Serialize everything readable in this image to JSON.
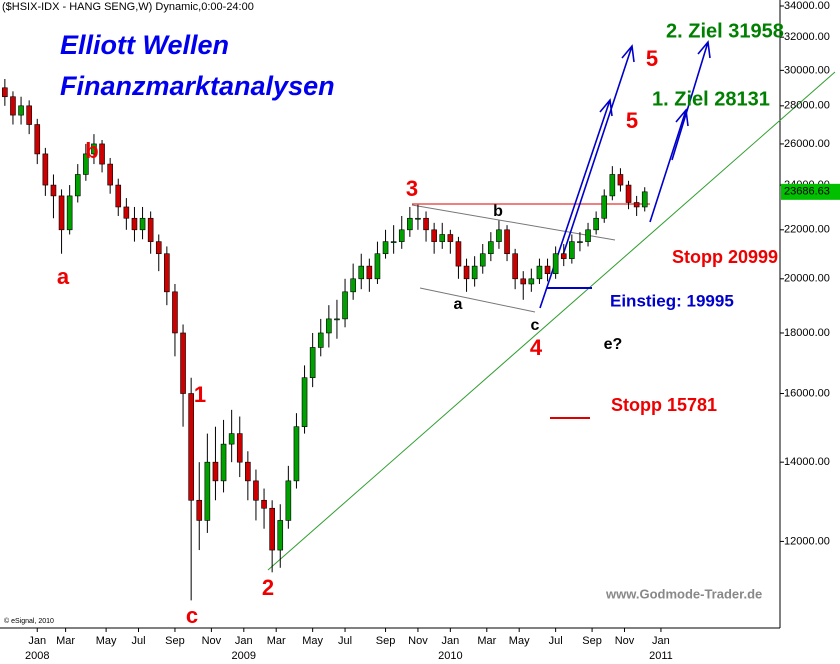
{
  "header": "($HSIX-IDX - HANG SENG,W) Dynamic,0:00-24:00",
  "chart_data": {
    "type": "candlestick",
    "title": "Elliott Wellen",
    "subtitle": "Finanzmarktanalysen",
    "log_scale": true,
    "up_color": "#00a000",
    "down_color": "#cc0000",
    "x": [
      0,
      2,
      4,
      6,
      8,
      10,
      12,
      14,
      16,
      18,
      20,
      22,
      24,
      26,
      28,
      30,
      32,
      34,
      36,
      38,
      40,
      42,
      44,
      46,
      48,
      50,
      52,
      54,
      56,
      58,
      60,
      62,
      64,
      66,
      68,
      70,
      72,
      74,
      76,
      78,
      80,
      82,
      84,
      86,
      88,
      90,
      92,
      94,
      96,
      98,
      100,
      102,
      104,
      106,
      108,
      110,
      112,
      114,
      116,
      118,
      120,
      122,
      124,
      126,
      128,
      130,
      132,
      134,
      136,
      138,
      140,
      142,
      144,
      146,
      148,
      150,
      152,
      154,
      156,
      158
    ],
    "open": [
      29000,
      28500,
      27500,
      28000,
      27000,
      25500,
      24000,
      23500,
      22000,
      23500,
      24500,
      25500,
      26000,
      25000,
      24000,
      23000,
      22500,
      22000,
      22500,
      21500,
      21000,
      19500,
      18000,
      16000,
      13000,
      12500,
      14000,
      13500,
      14500,
      14800,
      14000,
      13500,
      13000,
      12800,
      11800,
      12500,
      13500,
      15000,
      16500,
      17500,
      18000,
      18500,
      18500,
      19500,
      20000,
      20500,
      20000,
      21000,
      21500,
      21500,
      22000,
      22500,
      22500,
      22000,
      21500,
      21800,
      21500,
      20500,
      20000,
      20500,
      21000,
      21500,
      22000,
      21000,
      20000,
      19800,
      20000,
      20500,
      20200,
      21000,
      20800,
      21500,
      21500,
      22000,
      22500,
      23500,
      24500,
      24000,
      23200,
      23000
    ],
    "high": [
      29500,
      28800,
      28500,
      28300,
      27300,
      25800,
      24500,
      23800,
      24000,
      25000,
      26000,
      26500,
      26200,
      25300,
      24300,
      23400,
      23000,
      23000,
      22800,
      21800,
      21300,
      19800,
      18300,
      16500,
      14000,
      14800,
      15000,
      15200,
      15500,
      15300,
      14300,
      13800,
      13300,
      13000,
      12900,
      13900,
      15400,
      16900,
      18000,
      18500,
      19000,
      19200,
      20000,
      20600,
      21000,
      20800,
      21500,
      22000,
      22200,
      22600,
      23000,
      23100,
      22800,
      22300,
      22300,
      22000,
      21700,
      20800,
      20900,
      21400,
      21900,
      22400,
      22200,
      21200,
      20300,
      20400,
      20800,
      20800,
      21300,
      21400,
      21800,
      21900,
      22300,
      22800,
      23800,
      24900,
      24800,
      24200,
      23500,
      23900
    ],
    "low": [
      28000,
      27000,
      27000,
      26500,
      25000,
      23500,
      22500,
      21000,
      21800,
      23200,
      24200,
      25000,
      24600,
      23600,
      22600,
      22000,
      21500,
      21600,
      21000,
      20300,
      19000,
      17200,
      15000,
      10700,
      11800,
      12200,
      13000,
      13200,
      14000,
      13600,
      13000,
      12500,
      12300,
      11300,
      11400,
      12300,
      13300,
      14800,
      16200,
      17200,
      17500,
      17800,
      18200,
      19200,
      19600,
      19500,
      19800,
      20800,
      21000,
      21200,
      21700,
      22000,
      21500,
      21000,
      21200,
      21000,
      20000,
      19500,
      19700,
      20200,
      20700,
      21200,
      20700,
      19600,
      19200,
      19500,
      19800,
      19900,
      20000,
      20500,
      20600,
      21100,
      21300,
      21800,
      22300,
      23300,
      23700,
      22900,
      22600,
      22800
    ],
    "close": [
      28500,
      27500,
      28000,
      27000,
      25500,
      24000,
      23500,
      22000,
      23500,
      24500,
      25500,
      26000,
      25000,
      24000,
      23000,
      22500,
      22000,
      22500,
      21500,
      21000,
      19500,
      18000,
      16000,
      13000,
      12500,
      14000,
      13500,
      14500,
      14800,
      14000,
      13500,
      13000,
      12800,
      11800,
      12500,
      13500,
      15000,
      16500,
      17500,
      18000,
      18500,
      18500,
      19500,
      20000,
      20500,
      20000,
      21000,
      21500,
      21500,
      22000,
      22500,
      22500,
      22000,
      21500,
      21800,
      21500,
      20500,
      20000,
      20500,
      21000,
      21500,
      22000,
      21000,
      20000,
      19800,
      20000,
      20500,
      20200,
      21000,
      20800,
      21500,
      21500,
      22000,
      22500,
      23500,
      24500,
      24000,
      23200,
      23000,
      23686.63
    ],
    "xlim": [
      -1.2,
      191.4
    ],
    "ylim": [
      10140,
      34400
    ],
    "xticks": [
      {
        "value": 8,
        "label": "Jan"
      },
      {
        "value": 15,
        "label": "Mar"
      },
      {
        "value": 25,
        "label": "May"
      },
      {
        "value": 33,
        "label": "Jul"
      },
      {
        "value": 42,
        "label": "Sep"
      },
      {
        "value": 51,
        "label": "Nov"
      },
      {
        "value": 59,
        "label": "Jan"
      },
      {
        "value": 67,
        "label": "Mar"
      },
      {
        "value": 76,
        "label": "May"
      },
      {
        "value": 84,
        "label": "Jul"
      },
      {
        "value": 94,
        "label": "Sep"
      },
      {
        "value": 102,
        "label": "Nov"
      },
      {
        "value": 110,
        "label": "Jan"
      },
      {
        "value": 119,
        "label": "Mar"
      },
      {
        "value": 127,
        "label": "May"
      },
      {
        "value": 136,
        "label": "Jul"
      },
      {
        "value": 145,
        "label": "Sep"
      },
      {
        "value": 153,
        "label": "Nov"
      },
      {
        "value": 162,
        "label": "Jan"
      }
    ],
    "xyears": [
      {
        "value": 8,
        "label": "2008"
      },
      {
        "value": 59,
        "label": "2009"
      },
      {
        "value": 110,
        "label": "2010"
      },
      {
        "value": 162,
        "label": "2011"
      }
    ],
    "yticks": [
      {
        "value": 12000,
        "label": "12000.00"
      },
      {
        "value": 14000,
        "label": "14000.00"
      },
      {
        "value": 16000,
        "label": "16000.00"
      },
      {
        "value": 18000,
        "label": "18000.00"
      },
      {
        "value": 20000,
        "label": "20000.00"
      },
      {
        "value": 22000,
        "label": "22000.00"
      },
      {
        "value": 24000,
        "label": "24000.00"
      },
      {
        "value": 26000,
        "label": "26000.00"
      },
      {
        "value": 28000,
        "label": "28000.00"
      },
      {
        "value": 30000,
        "label": "30000.00"
      },
      {
        "value": 32000,
        "label": "32000.00"
      },
      {
        "value": 34000,
        "label": "34000.00"
      }
    ],
    "annotations": [
      {
        "text": "a",
        "color": "#ee0000"
      },
      {
        "text": "b",
        "color": "#ee0000"
      },
      {
        "text": "c",
        "color": "#ee0000"
      },
      {
        "text": "1",
        "color": "#ee0000"
      },
      {
        "text": "2",
        "color": "#ee0000"
      },
      {
        "text": "3",
        "color": "#ee0000"
      },
      {
        "text": "4",
        "color": "#ee0000"
      },
      {
        "text": "5",
        "color": "#ee0000"
      },
      {
        "text": "5",
        "color": "#ee0000"
      },
      {
        "text": "a",
        "color": "#000000"
      },
      {
        "text": "b",
        "color": "#000000"
      },
      {
        "text": "c",
        "color": "#000000"
      },
      {
        "text": "e?",
        "color": "#000000"
      },
      {
        "text": "2. Ziel 31958",
        "color": "#008000"
      },
      {
        "text": "1. Ziel 28131",
        "color": "#008000"
      },
      {
        "text": "Stopp 20999",
        "color": "#ee0000"
      },
      {
        "text": "Einstieg: 19995",
        "color": "#0000cc"
      },
      {
        "text": "Stopp 15781",
        "color": "#ee0000"
      },
      {
        "text": "www.Godmode-Trader.de",
        "color": "#888888"
      },
      {
        "text": "© eSignal, 2010",
        "color": "#000000"
      }
    ]
  }
}
